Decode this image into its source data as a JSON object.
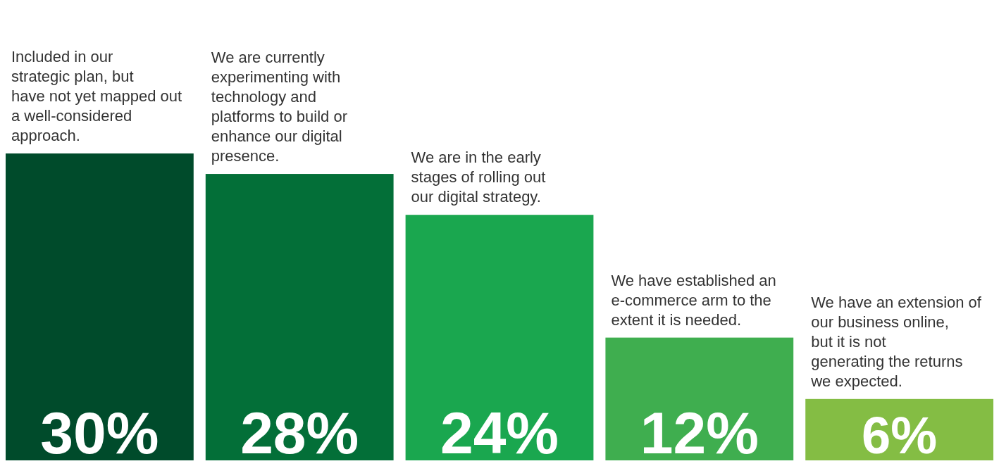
{
  "chart_data": {
    "type": "bar",
    "value_labels": [
      "30%",
      "28%",
      "24%",
      "12%",
      "6%"
    ],
    "categories": [
      "Included in our strategic plan, but have not yet mapped out a well-considered approach.",
      "We are currently experimenting with technology and platforms to build or enhance our digital presence.",
      "We are in the early stages of rolling out our digital strategy.",
      "We have established an e-commerce arm to the extent it is needed.",
      "We have an extension of our business online, but it is not generating the returns we expected."
    ],
    "values": [
      30,
      28,
      24,
      12,
      6
    ],
    "colors": [
      "#004b2b",
      "#036f38",
      "#1aa74f",
      "#3fae4f",
      "#84bd44"
    ]
  }
}
